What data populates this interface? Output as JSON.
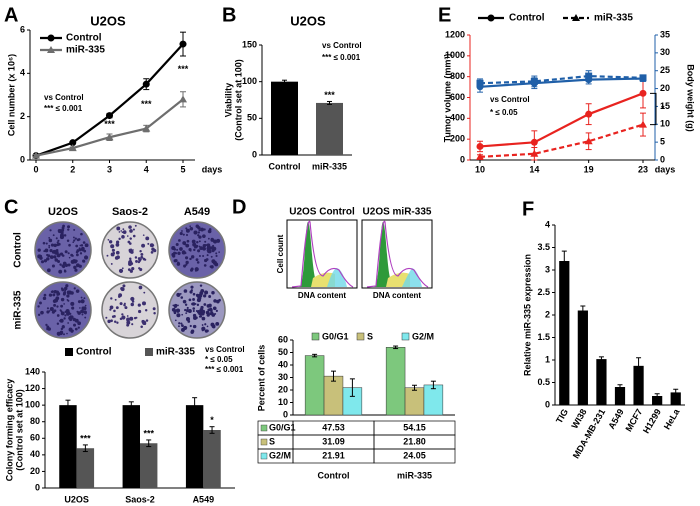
{
  "chart_data": [
    {
      "type": "line",
      "panel": "A",
      "title": "U2OS",
      "ylabel": "Cell number (x 10⁶)",
      "xlabel": "days",
      "categories": [
        "0",
        "2",
        "3",
        "4",
        "5"
      ],
      "series": [
        {
          "name": "Control",
          "color": "#000000",
          "marker": "circle",
          "values": [
            0.2,
            0.8,
            2.05,
            3.5,
            5.35
          ],
          "errors": [
            0.05,
            0.05,
            0.1,
            0.25,
            0.55
          ]
        },
        {
          "name": "miR-335",
          "color": "#6e6e6e",
          "marker": "triangle",
          "values": [
            0.2,
            0.55,
            1.05,
            1.45,
            2.8
          ],
          "errors": [
            0.05,
            0.05,
            0.15,
            0.15,
            0.35
          ]
        }
      ],
      "ylim": [
        0,
        6
      ],
      "yticks": [
        0,
        2,
        4,
        6
      ],
      "annotations": [
        "vs Control",
        "*** ≤ 0.001"
      ],
      "stars": [
        "***",
        "***",
        "***"
      ]
    },
    {
      "type": "bar",
      "panel": "B",
      "title": "U2OS",
      "ylabel": [
        "Viability",
        "(Control set at 100)"
      ],
      "categories": [
        "Control",
        "miR-335"
      ],
      "values": [
        100,
        71
      ],
      "errors": [
        2,
        2
      ],
      "colors": [
        "#000000",
        "#555555"
      ],
      "ylim": [
        0,
        150
      ],
      "yticks": [
        0,
        50,
        100,
        150
      ],
      "annotations": [
        "vs Control",
        "*** ≤ 0.001"
      ],
      "stars": [
        "***"
      ]
    },
    {
      "type": "bar",
      "panel": "C",
      "image_columns": [
        "U2OS",
        "Saos-2",
        "A549"
      ],
      "image_rows": [
        "Control",
        "miR-335"
      ],
      "ylabel": [
        "Colony forming efficacy",
        "(Control set at 100)"
      ],
      "categories": [
        "U2OS",
        "Saos-2",
        "A549"
      ],
      "series": [
        {
          "name": "Control",
          "color": "#000000",
          "values": [
            100,
            100,
            100
          ],
          "errors": [
            6,
            4,
            9
          ]
        },
        {
          "name": "miR-335",
          "color": "#555555",
          "values": [
            48,
            54,
            70
          ],
          "errors": [
            4,
            4,
            4
          ]
        }
      ],
      "ylim": [
        0,
        140
      ],
      "yticks": [
        0,
        20,
        40,
        60,
        80,
        100,
        120,
        140
      ],
      "annotations": [
        "vs Control",
        "* ≤ 0.05",
        "*** ≤ 0.001"
      ],
      "stars": [
        "***",
        "***",
        "*"
      ]
    },
    {
      "type": "bar",
      "panel": "D",
      "histogram_titles": [
        "U2OS Control",
        "U2OS miR-335"
      ],
      "histogram_ylabel": "Cell count",
      "histogram_xlabel": "DNA content",
      "ylabel": "Percent of cells",
      "categories": [
        "Control",
        "miR-335"
      ],
      "series": [
        {
          "name": "G0/G1",
          "color": "#7dc87d",
          "values": [
            47.53,
            54.15
          ],
          "value_labels": [
            "47.53",
            "54.15"
          ],
          "errors": [
            1,
            1
          ]
        },
        {
          "name": "S",
          "color": "#c8c07a",
          "values": [
            31.09,
            21.8
          ],
          "value_labels": [
            "31.09",
            "21.80"
          ],
          "errors": [
            4,
            2
          ]
        },
        {
          "name": "G2/M",
          "color": "#7fe8ec",
          "values": [
            21.91,
            24.05
          ],
          "value_labels": [
            "21.91",
            "24.05"
          ],
          "errors": [
            7,
            3
          ]
        }
      ],
      "ylim": [
        0,
        60
      ],
      "yticks": [
        0,
        10,
        20,
        30,
        40,
        50,
        60
      ]
    },
    {
      "type": "line",
      "panel": "E",
      "ylabel": "Tumor volume (mm³)",
      "y2label": "Body weight (g)",
      "xlabel": "days",
      "categories": [
        "10",
        "14",
        "19",
        "23"
      ],
      "series": [
        {
          "name": "Control",
          "color": "#e8231f",
          "marker": "circle",
          "dashed": false,
          "values": [
            130,
            170,
            440,
            640
          ],
          "errors": [
            50,
            110,
            100,
            140
          ]
        },
        {
          "name": "miR-335",
          "color": "#e8231f",
          "marker": "triangle",
          "dashed": true,
          "values": [
            30,
            60,
            180,
            340
          ],
          "errors": [
            20,
            60,
            80,
            110
          ]
        },
        {
          "name": "Control",
          "color": "#1f5fa8",
          "marker": "circle",
          "dashed": false,
          "axis": "y2",
          "values": [
            20.5,
            21.5,
            22.5,
            22.8
          ],
          "errors": [
            1.5,
            1.5,
            1.2,
            0.8
          ]
        },
        {
          "name": "miR-335",
          "color": "#1f5fa8",
          "marker": "square",
          "dashed": true,
          "axis": "y2",
          "values": [
            21.5,
            22,
            23.5,
            23
          ],
          "errors": [
            1.2,
            1.5,
            1.5,
            0.8
          ]
        }
      ],
      "ylim": [
        0,
        1200
      ],
      "yticks": [
        0,
        200,
        400,
        600,
        800,
        1000,
        1200
      ],
      "y2lim": [
        0,
        35
      ],
      "y2ticks": [
        0,
        5,
        10,
        15,
        20,
        25,
        30,
        35
      ],
      "annotations": [
        "vs Control",
        "* ≤ 0.05"
      ],
      "stars": [
        "*"
      ]
    },
    {
      "type": "bar",
      "panel": "F",
      "ylabel": "Relative miR-335 expression",
      "categories": [
        "TIG",
        "WI38",
        "MDA-MB-231",
        "A549",
        "MCF7",
        "H1299",
        "HeLa"
      ],
      "values": [
        3.2,
        2.1,
        1.02,
        0.4,
        0.87,
        0.2,
        0.28
      ],
      "errors": [
        0.22,
        0.1,
        0.05,
        0.05,
        0.18,
        0.05,
        0.07
      ],
      "color": "#000000",
      "ylim": [
        0,
        4
      ],
      "yticks": [
        0,
        0.5,
        1,
        1.5,
        2,
        2.5,
        3,
        3.5,
        4
      ]
    }
  ]
}
